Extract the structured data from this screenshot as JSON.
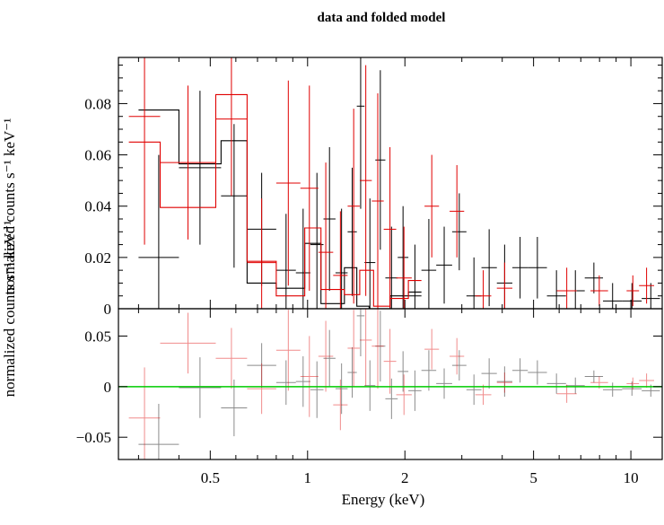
{
  "chart_data": {
    "type": "scatter",
    "title": "data and folded model",
    "xlabel": "Energy (keV)",
    "ylabel_top": "normalized counts s⁻¹ keV⁻¹",
    "ylabel_bottom": "normalized counts s⁻¹ keV⁻¹",
    "x_scale": "log",
    "xlim": [
      0.26,
      12.5
    ],
    "xticks": [
      "0.5",
      "1",
      "2",
      "5",
      "10"
    ],
    "xtick_values": [
      0.5,
      1,
      2,
      5,
      10
    ],
    "top_panel": {
      "ylim": [
        0,
        0.098
      ],
      "yticks": [
        "0",
        "0.02",
        "0.04",
        "0.06",
        "0.08"
      ],
      "ytick_values": [
        0,
        0.02,
        0.04,
        0.06,
        0.08
      ]
    },
    "bottom_panel": {
      "ylim": [
        -0.072,
        0.077
      ],
      "yticks": [
        "−0.05",
        "0",
        "0.05"
      ],
      "ytick_values": [
        -0.05,
        0,
        0.05
      ],
      "zero_line_color": "#00cc00"
    },
    "series": [
      {
        "color": "#000000",
        "data": [
          {
            "x0": 0.3,
            "x1": 0.4,
            "y": 0.02,
            "yerr": 0.04
          },
          {
            "x0": 0.4,
            "x1": 0.54,
            "y": 0.055,
            "yerr": 0.03
          },
          {
            "x0": 0.54,
            "x1": 0.65,
            "y": 0.044,
            "yerr": 0.028
          },
          {
            "x0": 0.65,
            "x1": 0.8,
            "y": 0.031,
            "yerr": 0.022
          },
          {
            "x0": 0.8,
            "x1": 0.92,
            "y": 0.015,
            "yerr": 0.022
          },
          {
            "x0": 0.92,
            "x1": 1.02,
            "y": 0.014,
            "yerr": 0.025
          },
          {
            "x0": 1.02,
            "x1": 1.12,
            "y": 0.025,
            "yerr": 0.028
          },
          {
            "x0": 1.12,
            "x1": 1.22,
            "y": 0.035,
            "yerr": 0.028
          },
          {
            "x0": 1.22,
            "x1": 1.33,
            "y": 0.014,
            "yerr": 0.025
          },
          {
            "x0": 1.33,
            "x1": 1.42,
            "y": 0.03,
            "yerr": 0.025
          },
          {
            "x0": 1.42,
            "x1": 1.5,
            "y": 0.079,
            "yerr": 0.04
          },
          {
            "x0": 1.5,
            "x1": 1.62,
            "y": 0.018,
            "yerr": 0.025
          },
          {
            "x0": 1.62,
            "x1": 1.74,
            "y": 0.058,
            "yerr": 0.035
          },
          {
            "x0": 1.74,
            "x1": 1.9,
            "y": 0.012,
            "yerr": 0.02
          },
          {
            "x0": 1.9,
            "x1": 2.05,
            "y": 0.02,
            "yerr": 0.02
          },
          {
            "x0": 2.05,
            "x1": 2.25,
            "y": 0.005,
            "yerr": 0.02
          },
          {
            "x0": 2.25,
            "x1": 2.5,
            "y": 0.015,
            "yerr": 0.02
          },
          {
            "x0": 2.5,
            "x1": 2.8,
            "y": 0.017,
            "yerr": 0.015
          },
          {
            "x0": 2.8,
            "x1": 3.1,
            "y": 0.03,
            "yerr": 0.015
          },
          {
            "x0": 3.1,
            "x1": 3.45,
            "y": 0.005,
            "yerr": 0.015
          },
          {
            "x0": 3.45,
            "x1": 3.85,
            "y": 0.016,
            "yerr": 0.015
          },
          {
            "x0": 3.85,
            "x1": 4.3,
            "y": 0.01,
            "yerr": 0.015
          },
          {
            "x0": 4.3,
            "x1": 4.8,
            "y": 0.016,
            "yerr": 0.012
          },
          {
            "x0": 4.8,
            "x1": 5.5,
            "y": 0.016,
            "yerr": 0.012
          },
          {
            "x0": 5.5,
            "x1": 6.3,
            "y": 0.005,
            "yerr": 0.01
          },
          {
            "x0": 6.3,
            "x1": 7.2,
            "y": 0.007,
            "yerr": 0.008
          },
          {
            "x0": 7.2,
            "x1": 8.2,
            "y": 0.012,
            "yerr": 0.006
          },
          {
            "x0": 8.2,
            "x1": 9.4,
            "y": 0.003,
            "yerr": 0.007
          },
          {
            "x0": 9.4,
            "x1": 10.8,
            "y": 0.003,
            "yerr": 0.007
          },
          {
            "x0": 10.8,
            "x1": 12.3,
            "y": 0.004,
            "yerr": 0.006
          }
        ],
        "model": [
          {
            "x0": 0.3,
            "x1": 0.4,
            "y": 0.0775
          },
          {
            "x0": 0.4,
            "x1": 0.54,
            "y": 0.0565
          },
          {
            "x0": 0.54,
            "x1": 0.65,
            "y": 0.0655
          },
          {
            "x0": 0.65,
            "x1": 0.8,
            "y": 0.01
          },
          {
            "x0": 0.8,
            "x1": 0.98,
            "y": 0.008
          },
          {
            "x0": 0.98,
            "x1": 1.1,
            "y": 0.0255
          },
          {
            "x0": 1.1,
            "x1": 1.3,
            "y": 0.002
          },
          {
            "x0": 1.3,
            "x1": 1.42,
            "y": 0.016
          },
          {
            "x0": 1.42,
            "x1": 1.55,
            "y": 0.001
          },
          {
            "x0": 1.55,
            "x1": 1.8,
            "y": 0.0
          },
          {
            "x0": 1.8,
            "x1": 2.05,
            "y": 0.005
          },
          {
            "x0": 2.05,
            "x1": 2.25,
            "y": 0.0065
          }
        ]
      },
      {
        "color": "#e00000",
        "data": [
          {
            "x0": 0.28,
            "x1": 0.35,
            "y": 0.075,
            "yerr": 0.05
          },
          {
            "x0": 0.35,
            "x1": 0.52,
            "y": 0.057,
            "yerr": 0.03
          },
          {
            "x0": 0.52,
            "x1": 0.65,
            "y": 0.074,
            "yerr": 0.03
          },
          {
            "x0": 0.65,
            "x1": 0.8,
            "y": 0.018,
            "yerr": 0.025
          },
          {
            "x0": 0.8,
            "x1": 0.95,
            "y": 0.049,
            "yerr": 0.04
          },
          {
            "x0": 0.95,
            "x1": 1.08,
            "y": 0.047,
            "yerr": 0.04
          },
          {
            "x0": 1.08,
            "x1": 1.2,
            "y": 0.022,
            "yerr": 0.035
          },
          {
            "x0": 1.2,
            "x1": 1.33,
            "y": 0.013,
            "yerr": 0.025
          },
          {
            "x0": 1.33,
            "x1": 1.45,
            "y": 0.04,
            "yerr": 0.038
          },
          {
            "x0": 1.45,
            "x1": 1.58,
            "y": 0.05,
            "yerr": 0.045
          },
          {
            "x0": 1.58,
            "x1": 1.72,
            "y": 0.042,
            "yerr": 0.042
          },
          {
            "x0": 1.72,
            "x1": 1.88,
            "y": 0.031,
            "yerr": 0.032
          },
          {
            "x0": 1.88,
            "x1": 2.1,
            "y": 0.012,
            "yerr": 0.02
          },
          {
            "x0": 2.3,
            "x1": 2.55,
            "y": 0.04,
            "yerr": 0.02
          },
          {
            "x0": 2.75,
            "x1": 3.05,
            "y": 0.038,
            "yerr": 0.018
          },
          {
            "x0": 3.3,
            "x1": 3.7,
            "y": 0.005,
            "yerr": 0.01
          },
          {
            "x0": 3.85,
            "x1": 4.3,
            "y": 0.008,
            "yerr": 0.01
          },
          {
            "x0": 5.9,
            "x1": 6.8,
            "y": 0.007,
            "yerr": 0.009
          },
          {
            "x0": 7.5,
            "x1": 8.5,
            "y": 0.007,
            "yerr": 0.006
          },
          {
            "x0": 9.7,
            "x1": 10.6,
            "y": 0.007,
            "yerr": 0.006
          },
          {
            "x0": 10.6,
            "x1": 11.8,
            "y": 0.009,
            "yerr": 0.007
          }
        ],
        "model": [
          {
            "x0": 0.28,
            "x1": 0.35,
            "y": 0.065
          },
          {
            "x0": 0.35,
            "x1": 0.52,
            "y": 0.0395
          },
          {
            "x0": 0.52,
            "x1": 0.65,
            "y": 0.0835
          },
          {
            "x0": 0.65,
            "x1": 0.8,
            "y": 0.0185
          },
          {
            "x0": 0.8,
            "x1": 0.98,
            "y": 0.005
          },
          {
            "x0": 0.98,
            "x1": 1.1,
            "y": 0.0315
          },
          {
            "x0": 1.1,
            "x1": 1.3,
            "y": 0.0075
          },
          {
            "x0": 1.3,
            "x1": 1.45,
            "y": 0.0055
          },
          {
            "x0": 1.45,
            "x1": 1.6,
            "y": 0.015
          },
          {
            "x0": 1.6,
            "x1": 1.8,
            "y": 0.001
          },
          {
            "x0": 1.8,
            "x1": 2.05,
            "y": 0.004
          },
          {
            "x0": 2.05,
            "x1": 2.25,
            "y": 0.011
          }
        ]
      }
    ],
    "residuals": [
      {
        "color": "#000000",
        "data": [
          {
            "x0": 0.3,
            "x1": 0.4,
            "y": -0.057,
            "yerr": 0.04
          },
          {
            "x0": 0.4,
            "x1": 0.54,
            "y": -0.001,
            "yerr": 0.03
          },
          {
            "x0": 0.54,
            "x1": 0.65,
            "y": -0.021,
            "yerr": 0.028
          },
          {
            "x0": 0.65,
            "x1": 0.8,
            "y": 0.021,
            "yerr": 0.022
          },
          {
            "x0": 0.8,
            "x1": 0.92,
            "y": 0.004,
            "yerr": 0.022
          },
          {
            "x0": 0.92,
            "x1": 1.02,
            "y": 0.005,
            "yerr": 0.025
          },
          {
            "x0": 1.02,
            "x1": 1.12,
            "y": -0.003,
            "yerr": 0.028
          },
          {
            "x0": 1.12,
            "x1": 1.22,
            "y": 0.028,
            "yerr": 0.028
          },
          {
            "x0": 1.22,
            "x1": 1.33,
            "y": -0.002,
            "yerr": 0.025
          },
          {
            "x0": 1.33,
            "x1": 1.42,
            "y": 0.014,
            "yerr": 0.025
          },
          {
            "x0": 1.42,
            "x1": 1.5,
            "y": 0.07,
            "yerr": 0.04
          },
          {
            "x0": 1.5,
            "x1": 1.62,
            "y": 0.001,
            "yerr": 0.025
          },
          {
            "x0": 1.62,
            "x1": 1.74,
            "y": 0.04,
            "yerr": 0.035
          },
          {
            "x0": 1.74,
            "x1": 1.9,
            "y": -0.012,
            "yerr": 0.02
          },
          {
            "x0": 1.9,
            "x1": 2.05,
            "y": 0.015,
            "yerr": 0.02
          },
          {
            "x0": 2.05,
            "x1": 2.25,
            "y": -0.004,
            "yerr": 0.02
          },
          {
            "x0": 2.25,
            "x1": 2.5,
            "y": 0.016,
            "yerr": 0.02
          },
          {
            "x0": 2.5,
            "x1": 2.8,
            "y": 0.003,
            "yerr": 0.015
          },
          {
            "x0": 2.8,
            "x1": 3.1,
            "y": 0.021,
            "yerr": 0.015
          },
          {
            "x0": 3.1,
            "x1": 3.45,
            "y": -0.003,
            "yerr": 0.015
          },
          {
            "x0": 3.45,
            "x1": 3.85,
            "y": 0.013,
            "yerr": 0.015
          },
          {
            "x0": 3.85,
            "x1": 4.3,
            "y": 0.005,
            "yerr": 0.015
          },
          {
            "x0": 4.3,
            "x1": 4.8,
            "y": 0.016,
            "yerr": 0.012
          },
          {
            "x0": 4.8,
            "x1": 5.5,
            "y": 0.014,
            "yerr": 0.012
          },
          {
            "x0": 5.5,
            "x1": 6.3,
            "y": 0.003,
            "yerr": 0.01
          },
          {
            "x0": 6.3,
            "x1": 7.2,
            "y": 0.001,
            "yerr": 0.008
          },
          {
            "x0": 7.2,
            "x1": 8.2,
            "y": 0.01,
            "yerr": 0.006
          },
          {
            "x0": 8.2,
            "x1": 9.4,
            "y": -0.003,
            "yerr": 0.007
          },
          {
            "x0": 9.4,
            "x1": 10.8,
            "y": -0.002,
            "yerr": 0.007
          },
          {
            "x0": 10.8,
            "x1": 12.3,
            "y": -0.004,
            "yerr": 0.006
          }
        ]
      },
      {
        "color": "#e00000",
        "data": [
          {
            "x0": 0.28,
            "x1": 0.35,
            "y": -0.031,
            "yerr": 0.05
          },
          {
            "x0": 0.35,
            "x1": 0.52,
            "y": 0.043,
            "yerr": 0.03
          },
          {
            "x0": 0.52,
            "x1": 0.65,
            "y": 0.028,
            "yerr": 0.03
          },
          {
            "x0": 0.65,
            "x1": 0.8,
            "y": -0.002,
            "yerr": 0.025
          },
          {
            "x0": 0.8,
            "x1": 0.95,
            "y": 0.036,
            "yerr": 0.04
          },
          {
            "x0": 0.95,
            "x1": 1.08,
            "y": 0.01,
            "yerr": 0.04
          },
          {
            "x0": 1.08,
            "x1": 1.2,
            "y": 0.03,
            "yerr": 0.035
          },
          {
            "x0": 1.2,
            "x1": 1.33,
            "y": -0.018,
            "yerr": 0.025
          },
          {
            "x0": 1.33,
            "x1": 1.45,
            "y": 0.038,
            "yerr": 0.038
          },
          {
            "x0": 1.45,
            "x1": 1.58,
            "y": 0.046,
            "yerr": 0.045
          },
          {
            "x0": 1.58,
            "x1": 1.72,
            "y": 0.04,
            "yerr": 0.042
          },
          {
            "x0": 1.72,
            "x1": 1.88,
            "y": 0.025,
            "yerr": 0.032
          },
          {
            "x0": 1.88,
            "x1": 2.1,
            "y": -0.008,
            "yerr": 0.02
          },
          {
            "x0": 2.3,
            "x1": 2.55,
            "y": 0.037,
            "yerr": 0.02
          },
          {
            "x0": 2.75,
            "x1": 3.05,
            "y": 0.03,
            "yerr": 0.018
          },
          {
            "x0": 3.3,
            "x1": 3.7,
            "y": -0.008,
            "yerr": 0.01
          },
          {
            "x0": 3.85,
            "x1": 4.3,
            "y": 0.004,
            "yerr": 0.01
          },
          {
            "x0": 5.9,
            "x1": 6.8,
            "y": -0.007,
            "yerr": 0.009
          },
          {
            "x0": 7.5,
            "x1": 8.5,
            "y": 0.004,
            "yerr": 0.006
          },
          {
            "x0": 9.7,
            "x1": 10.6,
            "y": 0.003,
            "yerr": 0.006
          },
          {
            "x0": 10.6,
            "x1": 11.8,
            "y": 0.006,
            "yerr": 0.007
          }
        ]
      }
    ]
  }
}
